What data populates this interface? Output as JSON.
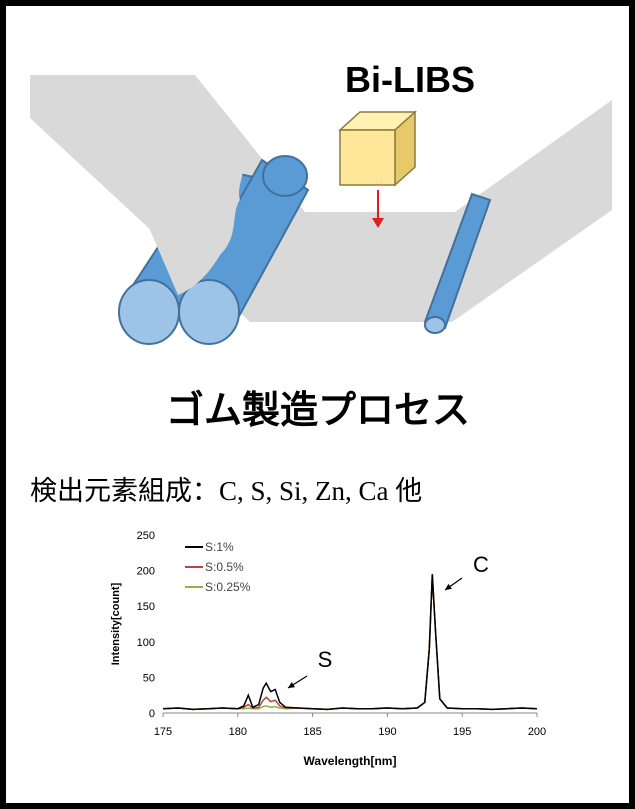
{
  "illustration": {
    "label": "Bi-LIBS"
  },
  "caption": "ゴム製造プロセス",
  "detection": "検出元素組成：C, S, Si, Zn, Ca 他",
  "chart_data": {
    "type": "line",
    "xlabel": "Wavelength[nm]",
    "ylabel": "Intensity[count]",
    "x": [
      175,
      176,
      177,
      178,
      179,
      180,
      180.4,
      180.7,
      181,
      181.4,
      181.7,
      181.9,
      182.2,
      182.5,
      182.8,
      183.2,
      184,
      185,
      186,
      187,
      188,
      189,
      190,
      191,
      192,
      192.5,
      192.8,
      193,
      193.2,
      193.5,
      194,
      195,
      196,
      197,
      198,
      199,
      200
    ],
    "series": [
      {
        "name": "S:1%",
        "color": "#000000",
        "values": [
          6,
          7,
          5,
          6,
          7,
          6,
          10,
          25,
          8,
          12,
          35,
          42,
          30,
          33,
          15,
          8,
          7,
          6,
          5,
          7,
          6,
          6,
          7,
          6,
          7,
          15,
          90,
          195,
          120,
          20,
          7,
          6,
          6,
          5,
          6,
          7,
          6
        ]
      },
      {
        "name": "S:0.5%",
        "color": "#b5453f",
        "values": [
          6,
          7,
          5,
          6,
          7,
          6,
          8,
          12,
          7,
          8,
          18,
          22,
          16,
          18,
          10,
          7,
          7,
          6,
          5,
          7,
          6,
          6,
          7,
          6,
          7,
          15,
          90,
          195,
          120,
          20,
          7,
          6,
          6,
          5,
          6,
          7,
          6
        ]
      },
      {
        "name": "S:0.25%",
        "color": "#8fb347",
        "values": [
          6,
          7,
          5,
          6,
          7,
          6,
          6,
          7,
          6,
          6,
          9,
          10,
          8,
          9,
          7,
          6,
          7,
          6,
          5,
          7,
          6,
          6,
          7,
          6,
          7,
          15,
          90,
          192,
          120,
          20,
          7,
          6,
          6,
          5,
          6,
          7,
          6
        ]
      }
    ],
    "xlim": [
      175,
      200
    ],
    "xticks": [
      175,
      180,
      185,
      190,
      195,
      200
    ],
    "ylim": [
      0,
      250
    ],
    "yticks": [
      0,
      50,
      100,
      150,
      200,
      250
    ],
    "grid": false,
    "legend": "top-left",
    "annotations": [
      {
        "text": "S"
      },
      {
        "text": "C"
      }
    ]
  }
}
